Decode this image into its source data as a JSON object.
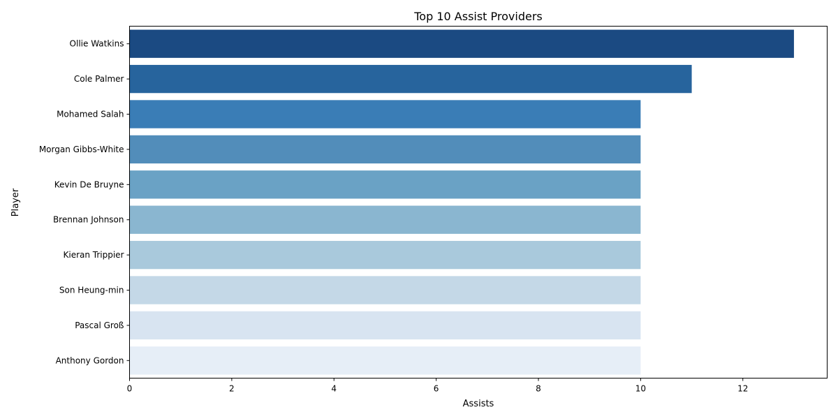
{
  "chart_data": {
    "type": "bar",
    "orientation": "horizontal",
    "title": "Top 10 Assist Providers",
    "xlabel": "Assists",
    "ylabel": "Player",
    "categories": [
      "Ollie Watkins",
      "Cole Palmer",
      "Mohamed Salah",
      "Morgan Gibbs-White",
      "Kevin De Bruyne",
      "Brennan Johnson",
      "Kieran Trippier",
      "Son Heung-min",
      "Pascal Groß",
      "Anthony Gordon"
    ],
    "values": [
      13,
      11,
      10,
      10,
      10,
      10,
      10,
      10,
      10,
      10
    ],
    "colors": [
      "#1b4a82",
      "#27649d",
      "#3a7db6",
      "#528dba",
      "#6aa2c5",
      "#8ab6d0",
      "#a9c9dc",
      "#c4d8e7",
      "#d8e4f1",
      "#e6eef7"
    ],
    "xlim": [
      0,
      13.65
    ],
    "xticks": [
      0,
      2,
      4,
      6,
      8,
      10,
      12
    ],
    "grid": false,
    "legend": "none"
  }
}
